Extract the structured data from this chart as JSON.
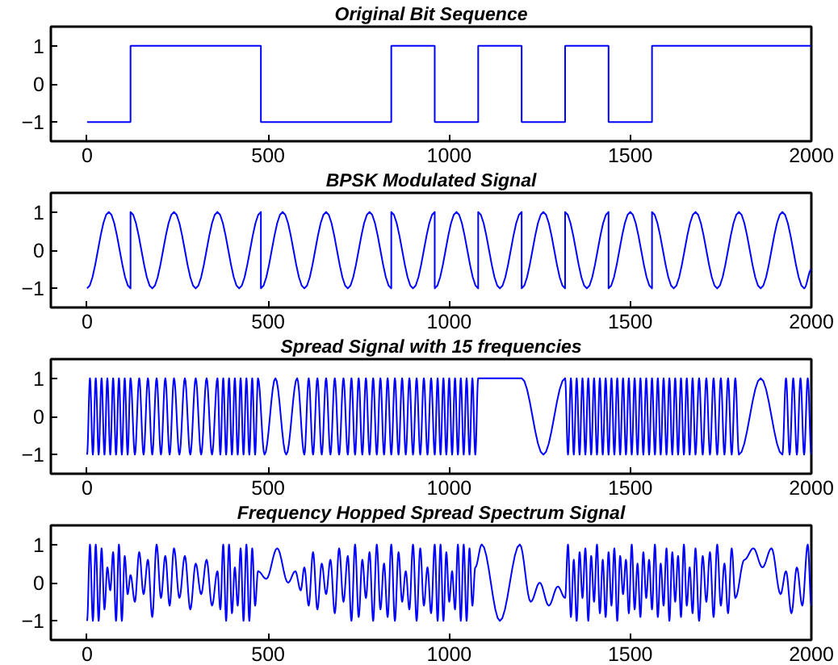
{
  "chart_data": [
    {
      "type": "step",
      "title": "Original Bit Sequence",
      "xlim": [
        -100,
        2000
      ],
      "ylim": [
        -1.5,
        1.5
      ],
      "xticks": [
        0,
        500,
        1000,
        1500,
        2000
      ],
      "yticks": [
        -1,
        0,
        1
      ],
      "grid": false,
      "series": [
        {
          "color": "#0000ff",
          "x": [
            0,
            120,
            480,
            840,
            960,
            1080,
            1200,
            1320,
            1440,
            1560,
            2000
          ],
          "values": [
            -1,
            1,
            -1,
            1,
            -1,
            1,
            -1,
            1,
            -1,
            1,
            1
          ]
        }
      ]
    },
    {
      "type": "line",
      "title": "BPSK Modulated Signal",
      "xlim": [
        -100,
        2000
      ],
      "ylim": [
        -1.5,
        1.5
      ],
      "xticks": [
        0,
        500,
        1000,
        1500,
        2000
      ],
      "yticks": [
        -1,
        0,
        1
      ],
      "grid": false,
      "series": [
        {
          "color": "#0000ff",
          "x": [
            0,
            60,
            120,
            120,
            180,
            240,
            300,
            360,
            420,
            480,
            480,
            540,
            600,
            660,
            720,
            780,
            840,
            840,
            900,
            960,
            960,
            1020,
            1080,
            1080,
            1140,
            1200,
            1200,
            1260,
            1320,
            1320,
            1380,
            1440,
            1440,
            1500,
            1560,
            1560,
            1620,
            1680,
            1740,
            1800,
            1860,
            1920,
            1980,
            2000
          ],
          "values": [
            -1,
            1,
            -1,
            1,
            -1,
            1,
            -1,
            1,
            -1,
            1,
            -1,
            1,
            -1,
            1,
            -1,
            1,
            -1,
            1,
            -1,
            1,
            -1,
            1,
            -1,
            1,
            -1,
            1,
            -1,
            1,
            -1,
            1,
            -1,
            1,
            -1,
            1,
            -1,
            1,
            -1,
            1,
            -1,
            1,
            -1,
            1,
            -1,
            -0.5
          ]
        }
      ]
    },
    {
      "type": "line",
      "title": "Spread Signal with 15 frequencies",
      "xlim": [
        -100,
        2000
      ],
      "ylim": [
        -1.5,
        1.5
      ],
      "xticks": [
        0,
        500,
        1000,
        1500,
        2000
      ],
      "yticks": [
        -1,
        0,
        1
      ],
      "grid": false,
      "series": [
        {
          "color": "#0000ff",
          "x": [
            0,
            8,
            16,
            24,
            32,
            40,
            48,
            56,
            64,
            72,
            80,
            88,
            96,
            104,
            112,
            120,
            132,
            144,
            156,
            168,
            180,
            192,
            204,
            216,
            228,
            240,
            255,
            270,
            285,
            300,
            315,
            330,
            345,
            360,
            368,
            376,
            384,
            392,
            400,
            408,
            416,
            424,
            432,
            440,
            448,
            456,
            464,
            472,
            490,
            520,
            550,
            580,
            600,
            612,
            624,
            636,
            648,
            660,
            672,
            684,
            696,
            708,
            720,
            730,
            740,
            750,
            760,
            770,
            780,
            790,
            800,
            810,
            820,
            830,
            840,
            850,
            860,
            870,
            880,
            890,
            900,
            910,
            920,
            930,
            940,
            950,
            960,
            968,
            976,
            984,
            992,
            1000,
            1008,
            1016,
            1024,
            1032,
            1040,
            1048,
            1056,
            1064,
            1072,
            1080,
            1200,
            1260,
            1320,
            1328,
            1336,
            1344,
            1352,
            1360,
            1368,
            1376,
            1384,
            1392,
            1400,
            1408,
            1416,
            1424,
            1432,
            1440,
            1448,
            1456,
            1464,
            1472,
            1480,
            1488,
            1496,
            1504,
            1512,
            1520,
            1528,
            1536,
            1544,
            1552,
            1560,
            1568,
            1576,
            1584,
            1592,
            1600,
            1608,
            1616,
            1624,
            1632,
            1640,
            1648,
            1656,
            1664,
            1672,
            1680,
            1690,
            1700,
            1710,
            1720,
            1730,
            1740,
            1750,
            1760,
            1770,
            1780,
            1790,
            1800,
            1860,
            1920,
            1930,
            1940,
            1950,
            1960,
            1970,
            1980,
            1990,
            2000
          ],
          "values": [
            -1,
            1,
            -1,
            1,
            -1,
            1,
            -1,
            1,
            -1,
            1,
            -1,
            1,
            -1,
            1,
            -1,
            1,
            -1,
            1,
            -1,
            1,
            -1,
            1,
            -1,
            1,
            -1,
            1,
            -1,
            1,
            -1,
            1,
            -1,
            1,
            -1,
            1,
            -1,
            1,
            -1,
            1,
            -1,
            1,
            -1,
            1,
            -1,
            1,
            -1,
            1,
            -1,
            1,
            -1,
            1,
            -1,
            1,
            -1,
            1,
            -1,
            1,
            -1,
            1,
            -1,
            1,
            -1,
            1,
            -1,
            1,
            -1,
            1,
            -1,
            1,
            -1,
            1,
            -1,
            1,
            -1,
            1,
            -1,
            1,
            -1,
            1,
            -1,
            1,
            -1,
            1,
            -1,
            1,
            -1,
            1,
            -1,
            1,
            -1,
            1,
            -1,
            1,
            -1,
            1,
            -1,
            1,
            -1,
            1,
            -1,
            1,
            -1,
            1,
            1,
            -1,
            1,
            -1,
            1,
            -1,
            1,
            -1,
            1,
            -1,
            1,
            -1,
            1,
            -1,
            1,
            -1,
            1,
            -1,
            1,
            -1,
            1,
            -1,
            1,
            -1,
            1,
            -1,
            1,
            -1,
            1,
            -1,
            1,
            -1,
            1,
            -1,
            1,
            -1,
            1,
            -1,
            1,
            -1,
            1,
            -1,
            1,
            -1,
            1,
            -1,
            1,
            -1,
            1,
            -1,
            1,
            -1,
            1,
            -1,
            1,
            -1,
            1,
            -1,
            1,
            -1,
            1,
            -1,
            1,
            -1,
            1,
            -1,
            1,
            -1,
            1,
            -1
          ]
        }
      ]
    },
    {
      "type": "line",
      "title": "Frequency Hopped Spread Spectrum Signal",
      "xlim": [
        -100,
        2000
      ],
      "ylim": [
        -1.5,
        1.5
      ],
      "xticks": [
        0,
        500,
        1000,
        1500,
        2000
      ],
      "yticks": [
        -1,
        0,
        1
      ],
      "grid": false,
      "series": [
        {
          "color": "#0000ff",
          "x": [
            0,
            8,
            16,
            24,
            32,
            40,
            48,
            56,
            64,
            72,
            80,
            88,
            96,
            104,
            112,
            120,
            132,
            144,
            156,
            168,
            180,
            192,
            204,
            216,
            228,
            240,
            255,
            270,
            285,
            300,
            315,
            330,
            345,
            360,
            368,
            376,
            384,
            392,
            400,
            408,
            416,
            424,
            432,
            440,
            448,
            456,
            464,
            472,
            495,
            525,
            555,
            575,
            590,
            600,
            612,
            624,
            636,
            648,
            660,
            672,
            684,
            696,
            708,
            720,
            730,
            740,
            750,
            760,
            770,
            780,
            790,
            800,
            810,
            820,
            830,
            840,
            850,
            860,
            870,
            880,
            890,
            900,
            910,
            920,
            930,
            940,
            950,
            960,
            968,
            976,
            984,
            992,
            1000,
            1008,
            1016,
            1024,
            1032,
            1040,
            1048,
            1056,
            1064,
            1072,
            1090,
            1140,
            1195,
            1225,
            1250,
            1275,
            1300,
            1320,
            1328,
            1336,
            1344,
            1352,
            1360,
            1368,
            1376,
            1384,
            1392,
            1400,
            1408,
            1416,
            1424,
            1432,
            1440,
            1448,
            1456,
            1464,
            1472,
            1480,
            1488,
            1496,
            1504,
            1512,
            1520,
            1528,
            1536,
            1544,
            1552,
            1560,
            1568,
            1576,
            1584,
            1592,
            1600,
            1608,
            1616,
            1624,
            1632,
            1640,
            1648,
            1656,
            1664,
            1672,
            1680,
            1690,
            1700,
            1710,
            1720,
            1730,
            1740,
            1750,
            1760,
            1770,
            1780,
            1790,
            1815,
            1840,
            1865,
            1890,
            1915,
            1930,
            1945,
            1960,
            1975,
            1990,
            2000
          ],
          "values": [
            -1,
            1,
            -1,
            1,
            -1,
            0.9,
            -0.7,
            0.4,
            -0.2,
            0.8,
            -1,
            1,
            -1,
            0.7,
            -0.3,
            0.2,
            -0.5,
            0.8,
            -0.3,
            0.6,
            -0.9,
            1,
            -0.4,
            0.7,
            -0.6,
            0.9,
            -0.4,
            0.7,
            -0.7,
            0.5,
            -0.3,
            0.6,
            -0.6,
            0.3,
            -0.7,
            1,
            -1,
            1,
            -0.8,
            0.4,
            -0.6,
            0.9,
            -1,
            1,
            -1,
            0.9,
            -0.6,
            0.3,
            0.1,
            0.9,
            0,
            0.3,
            -0.2,
            0.4,
            -0.6,
            0.8,
            -0.7,
            0.5,
            -0.3,
            0.6,
            -0.8,
            0.9,
            -0.5,
            0.7,
            -1,
            1,
            -0.9,
            0.6,
            -0.4,
            0.8,
            -1,
            1,
            -0.7,
            0.5,
            -0.9,
            1,
            -1,
            0.8,
            -0.5,
            0.3,
            -0.7,
            1,
            -1,
            0.9,
            -0.6,
            0.4,
            -0.8,
            1,
            -1,
            1,
            -1,
            0.8,
            -0.5,
            0.3,
            -0.7,
            1,
            -1,
            1,
            -1,
            0.9,
            -0.6,
            0.4,
            1,
            -1,
            1,
            -0.5,
            0,
            -0.6,
            -0.1,
            -0.4,
            1,
            -0.9,
            0.6,
            -1,
            0.8,
            -0.4,
            0.9,
            -1,
            0.7,
            -0.5,
            1,
            -0.8,
            0.6,
            -0.9,
            0.8,
            -0.6,
            0.9,
            -1,
            0.7,
            -0.3,
            0.6,
            -0.8,
            1,
            -0.7,
            0.5,
            -0.9,
            0.8,
            -0.4,
            0.6,
            -0.7,
            1,
            -0.9,
            0.5,
            -0.6,
            0.9,
            -1,
            0.8,
            -0.5,
            0.7,
            -0.9,
            1,
            -0.6,
            0.4,
            -0.8,
            0.9,
            -1,
            0.7,
            -0.5,
            0.8,
            -0.9,
            1,
            -0.6,
            0.5,
            -0.8,
            0.9,
            -0.4,
            0.6,
            0.9,
            0.4,
            0.9,
            -0.3,
            0.3,
            -0.8,
            0.4,
            -0.6,
            1,
            -0.6
          ]
        }
      ]
    }
  ]
}
